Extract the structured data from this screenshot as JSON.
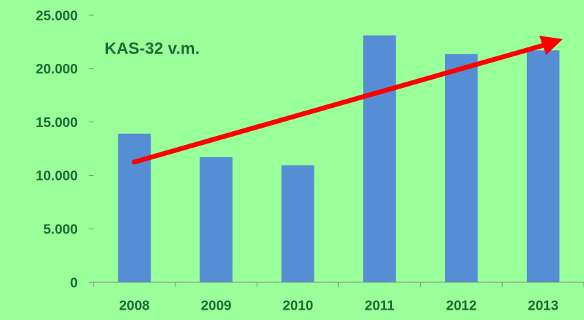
{
  "chart_data": {
    "type": "bar",
    "annotation": "KAS-32 v.m.",
    "categories": [
      "2008",
      "2009",
      "2010",
      "2011",
      "2012",
      "2013"
    ],
    "values": [
      13900,
      11700,
      10950,
      23100,
      21350,
      21700
    ],
    "color": "#558ed5",
    "ylim": [
      0,
      25000
    ],
    "yticks": [
      0,
      {
        "value": 5000,
        "label": "5.000"
      },
      {
        "value": 10000,
        "label": "10.000"
      },
      {
        "value": 15000,
        "label": "15.000"
      },
      {
        "value": 20000,
        "label": "20.000"
      },
      {
        "value": 25000,
        "label": "25.000"
      }
    ],
    "grid": true
  }
}
